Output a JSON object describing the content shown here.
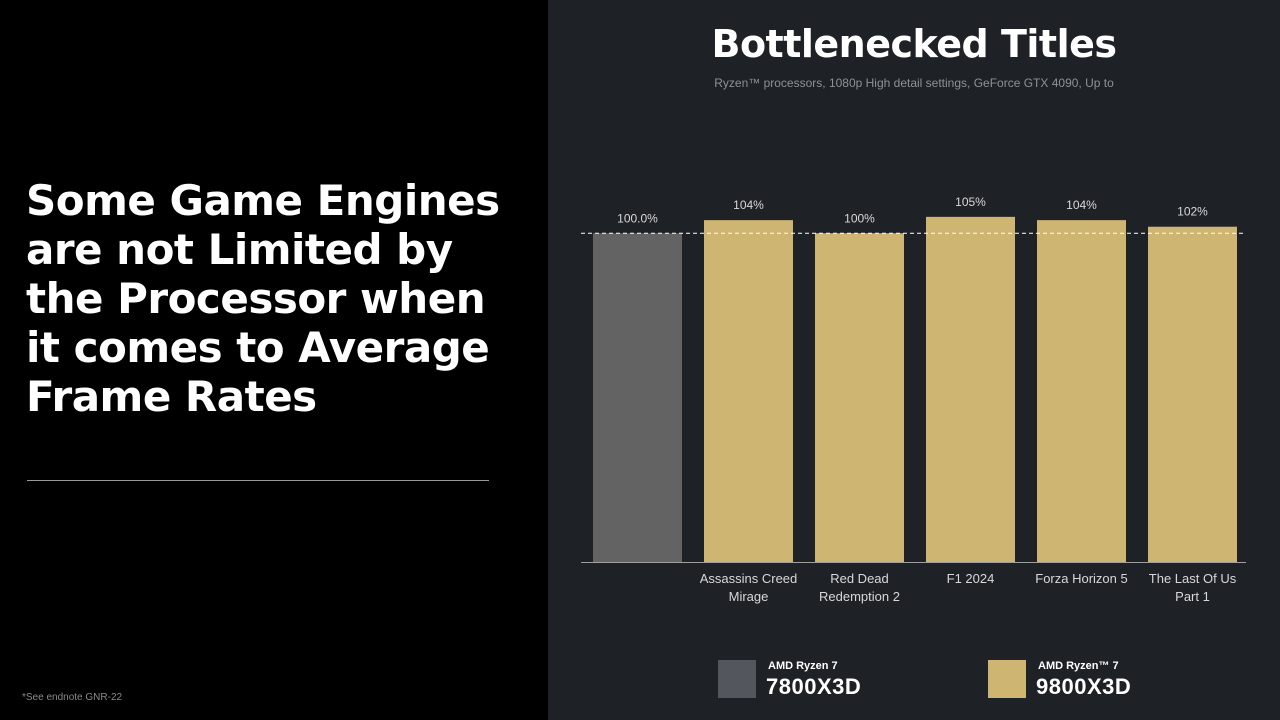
{
  "headline": {
    "lines": [
      "Some Game Engines",
      "are not Limited by",
      "the Processor when",
      "it comes to Average",
      "Frame Rates"
    ]
  },
  "footnote": "*See endnote GNR-22",
  "chart_data": {
    "type": "bar",
    "title": "Bottlenecked Titles",
    "subtitle": "Ryzen™ processors, 1080p High detail settings, GeForce GTX 4090, Up to",
    "xlabel": "",
    "ylabel": "",
    "ylim": [
      0,
      110
    ],
    "grid": false,
    "baseline_reference": 100,
    "legend_position": "bottom",
    "categories": [
      "",
      "Assassins Creed Mirage",
      "Red Dead Redemption 2",
      "F1 2024",
      "Forza Horizon 5",
      "The Last Of Us Part 1"
    ],
    "category_label_lines": [
      [],
      [
        "Assassins Creed",
        "Mirage"
      ],
      [
        "Red Dead",
        "Redemption 2"
      ],
      [
        "F1 2024"
      ],
      [
        "Forza Horizon 5"
      ],
      [
        "The Last Of Us",
        "Part 1"
      ]
    ],
    "values": [
      100.0,
      104,
      100,
      105,
      104,
      102
    ],
    "data_labels": [
      "100.0%",
      "104%",
      "100%",
      "105%",
      "104%",
      "102%"
    ],
    "bar_series_index": [
      0,
      1,
      1,
      1,
      1,
      1
    ],
    "series": [
      {
        "brand": "AMD Ryzen 7",
        "name": "7800X3D",
        "color": "#636363",
        "swatch_color": "#53565c"
      },
      {
        "brand": "AMD Ryzen™ 7",
        "name": "9800X3D",
        "color": "#cfb572",
        "swatch_color": "#cfb572"
      }
    ]
  },
  "colors": {
    "left_background": "#000000",
    "right_background": "#1e2126",
    "reference_line": "#ffffff",
    "axis_line": "#a0a0a0"
  }
}
